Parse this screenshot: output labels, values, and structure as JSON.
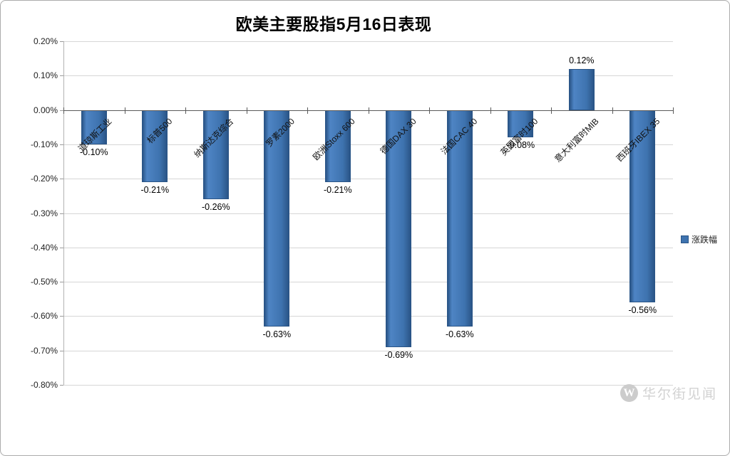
{
  "title": "欧美主要股指5月16日表现",
  "chart_data": {
    "type": "bar",
    "title": "欧美主要股指5月16日表现",
    "categories": [
      "道琼斯工业",
      "标普500",
      "纳斯达克综合",
      "罗素2000",
      "欧洲Stoxx 600",
      "德国DAX 30",
      "法国CAC 40",
      "英国富时100",
      "意大利富时MIB",
      "西班牙IBEX 35"
    ],
    "series": [
      {
        "name": "涨跌幅",
        "values": [
          -0.1,
          -0.21,
          -0.26,
          -0.63,
          -0.21,
          -0.69,
          -0.63,
          -0.08,
          0.12,
          -0.56
        ],
        "value_labels": [
          "-0.10%",
          "-0.21%",
          "-0.26%",
          "-0.63%",
          "-0.21%",
          "-0.69%",
          "-0.63%",
          "-0.08%",
          "0.12%",
          "-0.56%"
        ]
      }
    ],
    "ylabel": "",
    "xlabel": "",
    "ylim": [
      -0.8,
      0.2
    ],
    "y_ticks": [
      0.2,
      0.1,
      0.0,
      -0.1,
      -0.2,
      -0.3,
      -0.4,
      -0.5,
      -0.6,
      -0.7,
      -0.8
    ],
    "y_tick_labels": [
      "0.20%",
      "0.10%",
      "0.00%",
      "-0.10%",
      "-0.20%",
      "-0.30%",
      "-0.40%",
      "-0.50%",
      "-0.60%",
      "-0.70%",
      "-0.80%"
    ],
    "grid": true,
    "legend_position": "right",
    "bar_color": "#3e73af",
    "bar_color_light": "#4e84c4",
    "bar_border_color": "#2a5587"
  },
  "legend": {
    "label": "涨跌幅",
    "swatch_color": "#3e73af"
  },
  "watermark": {
    "logo": "W",
    "text": "华尔街见闻"
  }
}
